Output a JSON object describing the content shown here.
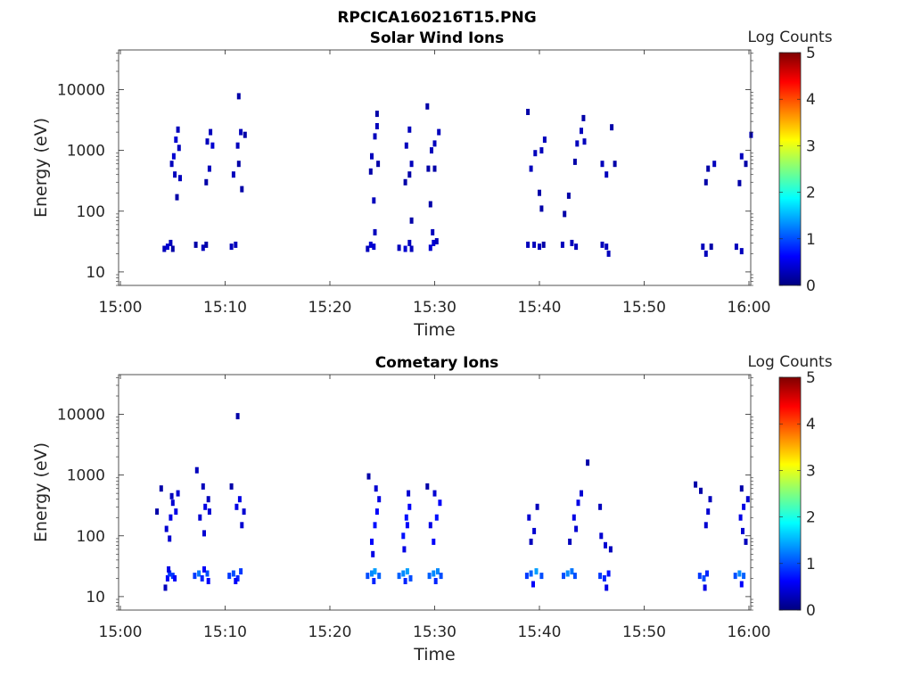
{
  "figure": {
    "title": "RPCICA160216T15.PNG"
  },
  "colors": {
    "colormap": [
      "#00007f",
      "#0000ff",
      "#007fff",
      "#00ffff",
      "#7fff7f",
      "#ffff00",
      "#ff7f00",
      "#ff0000",
      "#7f0000"
    ],
    "axis": "#262626"
  },
  "chart_data": [
    {
      "type": "heatmap",
      "title": "Solar Wind Ions",
      "xlabel": "Time",
      "ylabel": "Energy (eV)",
      "yscale": "log",
      "xlim": [
        "15:00",
        "16:00"
      ],
      "ylim": [
        6,
        45000
      ],
      "xticks": [
        "15:00",
        "15:10",
        "15:20",
        "15:30",
        "15:40",
        "15:50",
        "16:00"
      ],
      "yticks": [
        "10",
        "100",
        "1000",
        "10000"
      ],
      "colorbar": {
        "label": "Log Counts",
        "range": [
          0,
          5
        ],
        "ticks": [
          "0",
          "1",
          "2",
          "3",
          "4",
          "5"
        ]
      },
      "grid": false,
      "points": [
        [
          4.2,
          24,
          0.3
        ],
        [
          4.5,
          26,
          0.4
        ],
        [
          4.8,
          30,
          0.3
        ],
        [
          5.0,
          24,
          0.2
        ],
        [
          4.9,
          600,
          0.3
        ],
        [
          5.1,
          800,
          0.4
        ],
        [
          5.3,
          1500,
          0.4
        ],
        [
          5.5,
          2200,
          0.3
        ],
        [
          5.2,
          400,
          0.3
        ],
        [
          5.6,
          1100,
          0.3
        ],
        [
          5.4,
          170,
          0.2
        ],
        [
          5.7,
          350,
          0.3
        ],
        [
          7.2,
          28,
          0.2
        ],
        [
          7.9,
          25,
          0.3
        ],
        [
          8.2,
          28,
          0.2
        ],
        [
          8.3,
          1400,
          0.3
        ],
        [
          8.6,
          2000,
          0.3
        ],
        [
          8.8,
          1200,
          0.4
        ],
        [
          8.5,
          500,
          0.3
        ],
        [
          8.2,
          300,
          0.2
        ],
        [
          10.6,
          26,
          0.3
        ],
        [
          11.0,
          28,
          0.3
        ],
        [
          11.3,
          7800,
          0.2
        ],
        [
          10.8,
          400,
          0.3
        ],
        [
          11.2,
          1200,
          0.3
        ],
        [
          11.5,
          2000,
          0.3
        ],
        [
          11.9,
          1800,
          0.2
        ],
        [
          11.6,
          230,
          0.2
        ],
        [
          11.3,
          600,
          0.2
        ],
        [
          23.6,
          24,
          0.3
        ],
        [
          23.9,
          28,
          0.4
        ],
        [
          24.2,
          26,
          0.4
        ],
        [
          24.3,
          45,
          0.3
        ],
        [
          24.0,
          800,
          0.3
        ],
        [
          24.3,
          1700,
          0.3
        ],
        [
          24.5,
          2500,
          0.3
        ],
        [
          24.6,
          600,
          0.2
        ],
        [
          24.2,
          150,
          0.3
        ],
        [
          24.5,
          4000,
          0.2
        ],
        [
          23.9,
          450,
          0.2
        ],
        [
          26.6,
          25,
          0.3
        ],
        [
          27.2,
          24,
          0.4
        ],
        [
          27.6,
          30,
          0.3
        ],
        [
          27.8,
          24,
          0.3
        ],
        [
          27.3,
          1200,
          0.3
        ],
        [
          27.6,
          2200,
          0.3
        ],
        [
          27.8,
          600,
          0.3
        ],
        [
          27.6,
          400,
          0.2
        ],
        [
          27.2,
          300,
          0.2
        ],
        [
          27.8,
          70,
          0.2
        ],
        [
          29.6,
          25,
          0.4
        ],
        [
          29.9,
          30,
          0.4
        ],
        [
          30.2,
          32,
          0.3
        ],
        [
          29.8,
          45,
          0.3
        ],
        [
          29.7,
          1000,
          0.3
        ],
        [
          30.0,
          1300,
          0.3
        ],
        [
          30.4,
          2000,
          0.3
        ],
        [
          29.4,
          500,
          0.2
        ],
        [
          30.0,
          500,
          0.2
        ],
        [
          29.6,
          130,
          0.2
        ],
        [
          29.3,
          5300,
          0.2
        ],
        [
          38.9,
          28,
          0.3
        ],
        [
          39.5,
          28,
          0.3
        ],
        [
          40.0,
          26,
          0.3
        ],
        [
          40.4,
          28,
          0.2
        ],
        [
          38.9,
          4300,
          0.2
        ],
        [
          39.2,
          500,
          0.3
        ],
        [
          39.6,
          900,
          0.3
        ],
        [
          40.2,
          1000,
          0.3
        ],
        [
          40.5,
          1500,
          0.3
        ],
        [
          40.0,
          200,
          0.2
        ],
        [
          40.2,
          110,
          0.2
        ],
        [
          42.2,
          28,
          0.3
        ],
        [
          43.1,
          30,
          0.3
        ],
        [
          43.5,
          26,
          0.3
        ],
        [
          43.6,
          1300,
          0.3
        ],
        [
          44.0,
          2100,
          0.3
        ],
        [
          44.3,
          1400,
          0.3
        ],
        [
          43.4,
          650,
          0.2
        ],
        [
          42.8,
          180,
          0.2
        ],
        [
          42.4,
          90,
          0.2
        ],
        [
          44.2,
          3400,
          0.2
        ],
        [
          46.0,
          28,
          0.3
        ],
        [
          46.4,
          26,
          0.3
        ],
        [
          46.6,
          20,
          0.3
        ],
        [
          46.0,
          600,
          0.3
        ],
        [
          46.4,
          400,
          0.3
        ],
        [
          47.2,
          600,
          0.2
        ],
        [
          46.9,
          2400,
          0.2
        ],
        [
          55.6,
          26,
          0.3
        ],
        [
          55.9,
          20,
          0.3
        ],
        [
          56.4,
          26,
          0.2
        ],
        [
          55.9,
          300,
          0.2
        ],
        [
          56.1,
          500,
          0.2
        ],
        [
          56.7,
          600,
          0.3
        ],
        [
          58.8,
          26,
          0.3
        ],
        [
          59.3,
          22,
          0.3
        ],
        [
          59.3,
          800,
          0.3
        ],
        [
          59.7,
          600,
          0.2
        ],
        [
          60.2,
          1800,
          0.3
        ],
        [
          59.1,
          290,
          0.2
        ]
      ]
    },
    {
      "type": "heatmap",
      "title": "Cometary Ions",
      "xlabel": "Time",
      "ylabel": "Energy (eV)",
      "yscale": "log",
      "xlim": [
        "15:00",
        "16:00"
      ],
      "ylim": [
        6,
        45000
      ],
      "xticks": [
        "15:00",
        "15:10",
        "15:20",
        "15:30",
        "15:40",
        "15:50",
        "16:00"
      ],
      "yticks": [
        "10",
        "100",
        "1000",
        "10000"
      ],
      "colorbar": {
        "label": "Log Counts",
        "range": [
          0,
          5
        ],
        "ticks": [
          "0",
          "1",
          "2",
          "3",
          "4",
          "5"
        ]
      },
      "grid": false,
      "points": [
        [
          4.3,
          14,
          0.3
        ],
        [
          4.5,
          20,
          0.6
        ],
        [
          4.7,
          24,
          0.9
        ],
        [
          5.0,
          22,
          0.9
        ],
        [
          5.2,
          20,
          0.6
        ],
        [
          4.6,
          28,
          0.5
        ],
        [
          4.4,
          130,
          0.4
        ],
        [
          4.8,
          200,
          0.5
        ],
        [
          5.0,
          350,
          0.4
        ],
        [
          5.3,
          250,
          0.5
        ],
        [
          5.5,
          500,
          0.4
        ],
        [
          4.7,
          90,
          0.4
        ],
        [
          4.9,
          450,
          0.3
        ],
        [
          3.9,
          600,
          0.2
        ],
        [
          3.5,
          250,
          0.2
        ],
        [
          7.1,
          22,
          0.9
        ],
        [
          7.5,
          24,
          1.2
        ],
        [
          7.8,
          20,
          0.8
        ],
        [
          8.3,
          24,
          1.0
        ],
        [
          8.0,
          28,
          0.6
        ],
        [
          8.4,
          18,
          0.6
        ],
        [
          7.6,
          200,
          0.4
        ],
        [
          8.1,
          300,
          0.5
        ],
        [
          8.5,
          250,
          0.4
        ],
        [
          8.0,
          110,
          0.4
        ],
        [
          7.3,
          1200,
          0.3
        ],
        [
          7.9,
          650,
          0.3
        ],
        [
          8.4,
          400,
          0.3
        ],
        [
          10.4,
          22,
          0.9
        ],
        [
          10.8,
          24,
          1.0
        ],
        [
          11.2,
          20,
          0.8
        ],
        [
          11.5,
          26,
          0.9
        ],
        [
          11.0,
          18,
          0.6
        ],
        [
          11.1,
          300,
          0.5
        ],
        [
          11.4,
          400,
          0.5
        ],
        [
          11.8,
          250,
          0.4
        ],
        [
          11.6,
          150,
          0.4
        ],
        [
          10.6,
          650,
          0.2
        ],
        [
          11.2,
          9300,
          0.2
        ],
        [
          23.6,
          22,
          1.0
        ],
        [
          24.0,
          24,
          1.3
        ],
        [
          24.3,
          26,
          1.4
        ],
        [
          24.7,
          22,
          1.1
        ],
        [
          24.2,
          18,
          0.8
        ],
        [
          24.0,
          80,
          0.6
        ],
        [
          24.3,
          150,
          0.7
        ],
        [
          24.5,
          250,
          0.6
        ],
        [
          24.7,
          400,
          0.5
        ],
        [
          24.1,
          50,
          0.5
        ],
        [
          24.4,
          600,
          0.4
        ],
        [
          23.7,
          950,
          0.2
        ],
        [
          26.6,
          22,
          1.1
        ],
        [
          27.0,
          24,
          1.3
        ],
        [
          27.4,
          26,
          1.4
        ],
        [
          27.7,
          20,
          1.0
        ],
        [
          27.2,
          18,
          0.8
        ],
        [
          27.0,
          100,
          0.7
        ],
        [
          27.3,
          200,
          0.7
        ],
        [
          27.6,
          300,
          0.6
        ],
        [
          27.4,
          150,
          0.6
        ],
        [
          27.1,
          60,
          0.5
        ],
        [
          27.5,
          500,
          0.4
        ],
        [
          29.5,
          22,
          1.1
        ],
        [
          29.9,
          24,
          1.3
        ],
        [
          30.3,
          26,
          1.3
        ],
        [
          30.6,
          22,
          1.0
        ],
        [
          30.1,
          18,
          0.8
        ],
        [
          29.9,
          80,
          0.6
        ],
        [
          30.2,
          200,
          0.7
        ],
        [
          30.5,
          350,
          0.6
        ],
        [
          29.6,
          150,
          0.5
        ],
        [
          30.0,
          500,
          0.4
        ],
        [
          29.3,
          650,
          0.2
        ],
        [
          38.8,
          22,
          0.9
        ],
        [
          39.2,
          24,
          1.1
        ],
        [
          39.7,
          26,
          1.4
        ],
        [
          40.2,
          22,
          1.0
        ],
        [
          39.4,
          16,
          0.6
        ],
        [
          39.0,
          200,
          0.4
        ],
        [
          39.5,
          120,
          0.4
        ],
        [
          39.8,
          300,
          0.3
        ],
        [
          39.2,
          80,
          0.3
        ],
        [
          42.3,
          22,
          1.0
        ],
        [
          42.7,
          24,
          1.3
        ],
        [
          43.1,
          26,
          1.2
        ],
        [
          43.4,
          22,
          1.0
        ],
        [
          43.3,
          200,
          0.5
        ],
        [
          43.7,
          350,
          0.5
        ],
        [
          44.0,
          500,
          0.4
        ],
        [
          43.5,
          130,
          0.4
        ],
        [
          42.9,
          80,
          0.3
        ],
        [
          44.6,
          1600,
          0.2
        ],
        [
          45.8,
          22,
          0.9
        ],
        [
          46.2,
          20,
          0.8
        ],
        [
          46.6,
          24,
          0.7
        ],
        [
          46.4,
          14,
          0.5
        ],
        [
          45.9,
          100,
          0.4
        ],
        [
          46.3,
          70,
          0.4
        ],
        [
          46.8,
          60,
          0.3
        ],
        [
          45.8,
          300,
          0.3
        ],
        [
          55.3,
          22,
          0.9
        ],
        [
          55.7,
          20,
          1.0
        ],
        [
          56.0,
          24,
          0.8
        ],
        [
          55.8,
          14,
          0.5
        ],
        [
          55.9,
          150,
          0.4
        ],
        [
          56.1,
          250,
          0.4
        ],
        [
          56.3,
          400,
          0.3
        ],
        [
          55.4,
          550,
          0.2
        ],
        [
          54.9,
          700,
          0.2
        ],
        [
          58.7,
          22,
          1.0
        ],
        [
          59.1,
          24,
          1.3
        ],
        [
          59.5,
          22,
          1.1
        ],
        [
          59.3,
          16,
          0.6
        ],
        [
          59.2,
          200,
          0.5
        ],
        [
          59.5,
          300,
          0.5
        ],
        [
          59.9,
          400,
          0.4
        ],
        [
          59.4,
          120,
          0.4
        ],
        [
          59.7,
          80,
          0.3
        ],
        [
          59.3,
          600,
          0.2
        ]
      ]
    }
  ]
}
